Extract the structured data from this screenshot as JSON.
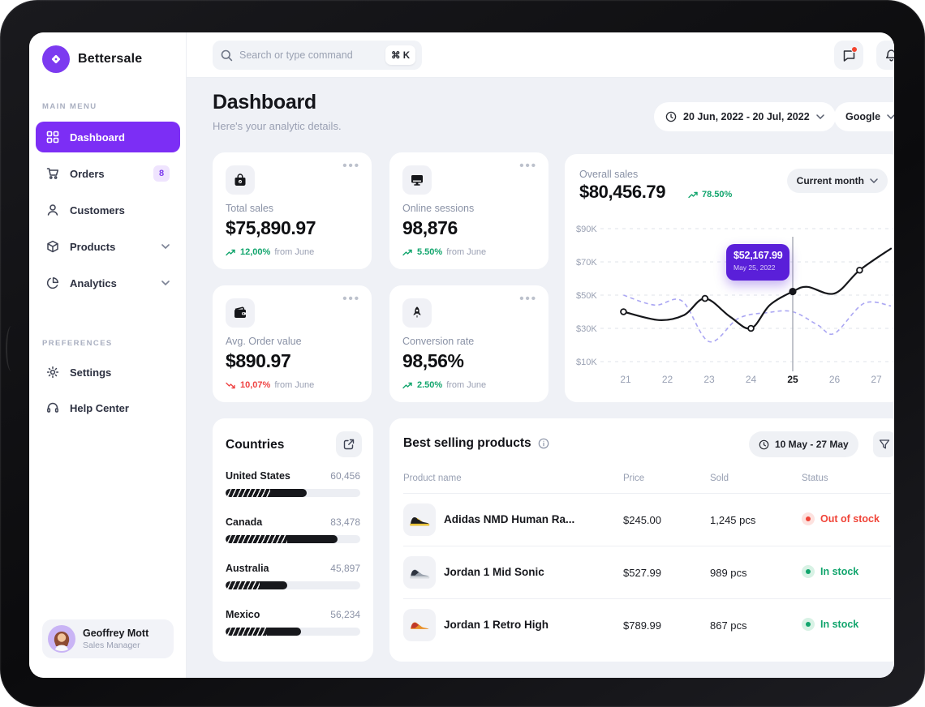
{
  "brand": {
    "name": "Bettersale"
  },
  "topbar": {
    "search_placeholder": "Search or type command",
    "shortcut": "⌘ K"
  },
  "sidebar": {
    "main_menu_label": "MAIN MENU",
    "preferences_label": "PREFERENCES",
    "menu": [
      {
        "label": "Dashboard",
        "active": true
      },
      {
        "label": "Orders",
        "badge": "8"
      },
      {
        "label": "Customers"
      },
      {
        "label": "Products",
        "expandable": true
      },
      {
        "label": "Analytics",
        "expandable": true
      }
    ],
    "preferences": [
      {
        "label": "Settings"
      },
      {
        "label": "Help Center"
      }
    ],
    "profile": {
      "name": "Geoffrey Mott",
      "role": "Sales Manager"
    }
  },
  "header": {
    "title": "Dashboard",
    "subtitle": "Here's your analytic details.",
    "date_range": "20 Jun, 2022 - 20 Jul, 2022",
    "source": "Google"
  },
  "stats": [
    {
      "label": "Total sales",
      "value": "$75,890.97",
      "delta": "12,00%",
      "suffix": "from June",
      "direction": "up"
    },
    {
      "label": "Online sessions",
      "value": "98,876",
      "delta": "5.50%",
      "suffix": "from June",
      "direction": "up"
    },
    {
      "label": "Avg. Order value",
      "value": "$890.97",
      "delta": "10,07%",
      "suffix": "from June",
      "direction": "down"
    },
    {
      "label": "Conversion rate",
      "value": "98,56%",
      "delta": "2.50%",
      "suffix": "from June",
      "direction": "up"
    }
  ],
  "overall_sales": {
    "title": "Overall sales",
    "value": "$80,456.79",
    "delta": "78.50%",
    "period": "Current month",
    "tooltip": {
      "value": "$52,167.99",
      "date": "May 25, 2022"
    }
  },
  "chart_data": {
    "type": "line",
    "title": "Overall sales",
    "x_ticks": [
      21,
      22,
      23,
      24,
      25,
      26,
      27
    ],
    "highlight_x": 25,
    "y_ticks": [
      "$90K",
      "$70K",
      "$50K",
      "$30K",
      "$10K"
    ],
    "y_range_k": [
      10,
      90
    ],
    "grid": "dashed-horizontal",
    "legend": "none",
    "series": [
      {
        "name": "solid-line",
        "style": "solid",
        "color": "#15161A",
        "points": [
          [
            20.95,
            40
          ],
          [
            21.8,
            35
          ],
          [
            22.4,
            38
          ],
          [
            22.9,
            48
          ],
          [
            23.5,
            37
          ],
          [
            24,
            30
          ],
          [
            24.45,
            44
          ],
          [
            25,
            52.17
          ],
          [
            25.35,
            55
          ],
          [
            26,
            51
          ],
          [
            26.6,
            65
          ],
          [
            27.35,
            78
          ]
        ],
        "markers_open": [
          [
            20.95,
            40
          ],
          [
            22.9,
            48
          ],
          [
            24,
            30
          ],
          [
            26.6,
            65
          ]
        ],
        "marker_filled": [
          25,
          52.17
        ]
      },
      {
        "name": "dashed-line",
        "style": "dashed",
        "color": "#ABA7F3",
        "points": [
          [
            20.95,
            50
          ],
          [
            21.7,
            44
          ],
          [
            22.35,
            46.5
          ],
          [
            23,
            22
          ],
          [
            23.7,
            36
          ],
          [
            24.4,
            39.5
          ],
          [
            25,
            40
          ],
          [
            25.6,
            32
          ],
          [
            26,
            27
          ],
          [
            26.7,
            45
          ],
          [
            27.35,
            43.5
          ]
        ]
      }
    ],
    "highlight_value_k": 52.17
  },
  "countries": {
    "title": "Countries",
    "items": [
      {
        "name": "United States",
        "value": "60,456",
        "pct": 60
      },
      {
        "name": "Canada",
        "value": "83,478",
        "pct": 83
      },
      {
        "name": "Australia",
        "value": "45,897",
        "pct": 46
      },
      {
        "name": "Mexico",
        "value": "56,234",
        "pct": 56
      }
    ]
  },
  "products": {
    "title": "Best selling products",
    "date_range": "10 May - 27 May",
    "columns": [
      "Product name",
      "Price",
      "Sold",
      "Status"
    ],
    "rows": [
      {
        "name": "Adidas NMD Human Ra...",
        "price": "$245.00",
        "sold": "1,245 pcs",
        "status": "Out of stock",
        "status_type": "out"
      },
      {
        "name": "Jordan 1 Mid Sonic",
        "price": "$527.99",
        "sold": "989 pcs",
        "status": "In stock",
        "status_type": "in"
      },
      {
        "name": "Jordan 1 Retro High",
        "price": "$789.99",
        "sold": "867 pcs",
        "status": "In stock",
        "status_type": "in"
      }
    ]
  },
  "colors": {
    "accent_purple": "#7C2EF5",
    "tooltip_purple": "#5A1FD9",
    "positive_green": "#12A56D",
    "negative_red": "#EF4444",
    "line_current": "#15161A",
    "line_previous": "#ABA7F3",
    "main_bg": "#EFF1F6",
    "alert_dot": "#F4442E"
  }
}
